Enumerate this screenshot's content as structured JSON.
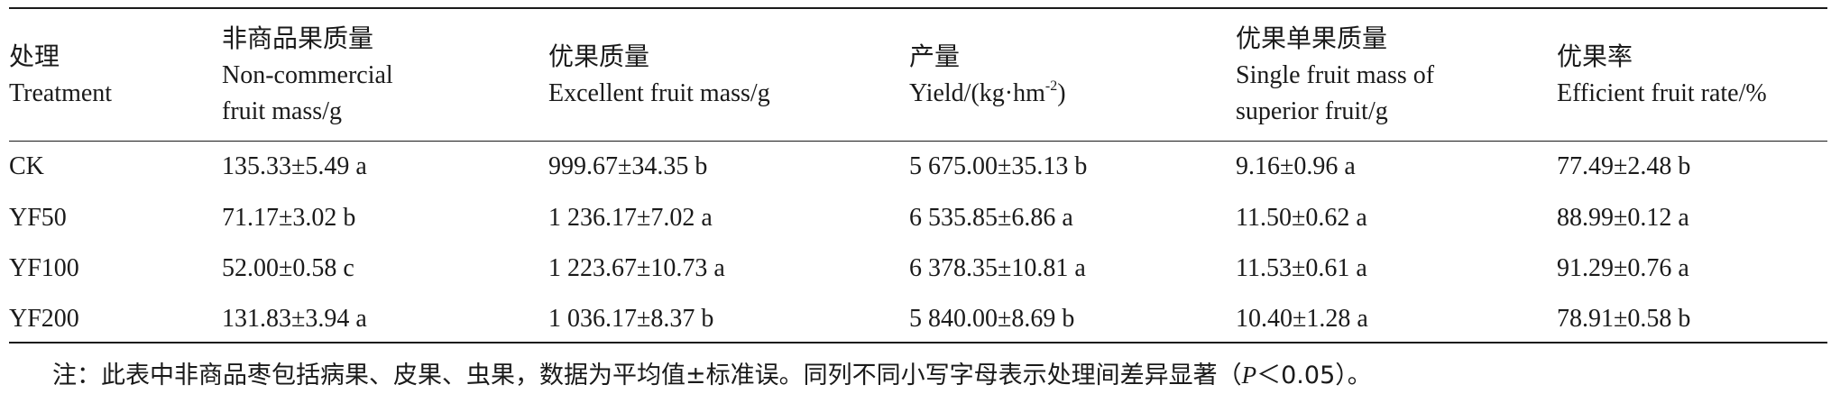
{
  "headers": [
    {
      "zh": "处理",
      "en": [
        "Treatment"
      ]
    },
    {
      "zh": "非商品果质量",
      "en": [
        "Non-commercial",
        "fruit mass/g"
      ]
    },
    {
      "zh": "优果质量",
      "en": [
        "Excellent fruit mass/g"
      ]
    },
    {
      "zh": "产量",
      "en_prefix": "Yield/(kg·hm",
      "en_sup": "-2",
      "en_suffix": ")"
    },
    {
      "zh": "优果单果质量",
      "en": [
        "Single fruit mass of",
        "superior fruit/g"
      ]
    },
    {
      "zh": "优果率",
      "en": [
        "Efficient fruit rate/%"
      ]
    }
  ],
  "rows": [
    [
      "CK",
      "135.33±5.49 a",
      "999.67±34.35 b",
      "5 675.00±35.13 b",
      "9.16±0.96 a",
      "77.49±2.48 b"
    ],
    [
      "YF50",
      "71.17±3.02 b",
      "1 236.17±7.02 a",
      "6 535.85±6.86 a",
      "11.50±0.62 a",
      "88.99±0.12 a"
    ],
    [
      "YF100",
      "52.00±0.58 c",
      "1 223.67±10.73 a",
      "6 378.35±10.81 a",
      "11.53±0.61 a",
      "91.29±0.76 a"
    ],
    [
      "YF200",
      "131.83±3.94 a",
      "1 036.17±8.37 b",
      "5 840.00±8.69 b",
      "10.40±1.28 a",
      "78.91±0.58 b"
    ]
  ],
  "note": {
    "prefix": "注：此表中非商品枣包括病果、皮果、虫果，数据为平均值±标准误。同列不同小写字母表示处理间差异显著（",
    "italic": "P",
    "suffix": "＜0.05）。"
  }
}
